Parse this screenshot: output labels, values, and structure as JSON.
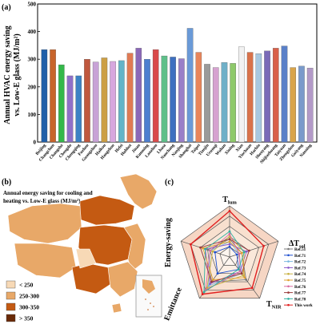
{
  "chart_data": [
    {
      "panel_label": "(a)",
      "type": "bar",
      "ylabel_line1": "Annual HVAC energy saving",
      "ylabel_line2": "vs. Low-E glass (MJ/m²)",
      "ylim": [
        0,
        500
      ],
      "yticks": [
        "0",
        "100",
        "200",
        "300",
        "400",
        "500"
      ],
      "categories": [
        "Beijing",
        "Changchun",
        "Changsha",
        "Chengdu",
        "Chongqing",
        "Fuzhou",
        "Guangzhou",
        "Haikou",
        "Hangzhou",
        "Hefei",
        "Huhhot",
        "Jinan",
        "Kunming",
        "Lanzhou",
        "Lhasa",
        "Nanchang",
        "Nanjing",
        "Shanghai",
        "Taipei",
        "Tianjin",
        "Urumqi",
        "Wuhan",
        "Xining",
        "Xian",
        "Yinchuan",
        "Harbin",
        "Shenyang",
        "Shijiazhuang",
        "Taiyuan",
        "Zhengzhou",
        "Guiyang",
        "Nanning"
      ],
      "values": [
        335,
        335,
        280,
        240,
        240,
        300,
        290,
        305,
        292,
        295,
        322,
        340,
        300,
        335,
        312,
        308,
        302,
        412,
        325,
        282,
        270,
        288,
        285,
        345,
        325,
        320,
        330,
        340,
        348,
        270,
        275,
        268
      ],
      "colors": [
        "#1f5fa8",
        "#c8642a",
        "#34b84a",
        "#8f70c8",
        "#3b82c4",
        "#c0583e",
        "#c8a2d6",
        "#cc9f45",
        "#d7a7de",
        "#63b4c8",
        "#e07a54",
        "#8b68b8",
        "#4d7fd0",
        "#d94a4a",
        "#5fbf8a",
        "#3e70c0",
        "#9a7fc8",
        "#6a9ad8",
        "#e8855a",
        "#9a9a9a",
        "#d6a2d0",
        "#6fb0c8",
        "#8ec96a",
        "#f2f2f2",
        "#d9724a",
        "#a8c8e0",
        "#7a6ab8",
        "#d9604a",
        "#5a80c8",
        "#d9a44a",
        "#7a9acb",
        "#b39ac8"
      ]
    },
    {
      "panel_label": "(b)",
      "type": "map",
      "title_line1": "Annual energy saving for cooling and",
      "title_line2": "heating vs. Low-E glass (MJ/m²)",
      "legend": [
        {
          "label": "< 250",
          "color": "#f7d9b6"
        },
        {
          "label": "250-300",
          "color": "#e8a868"
        },
        {
          "label": "300-350",
          "color": "#c45a12"
        },
        {
          "label": "> 350",
          "color": "#6a2a08"
        }
      ]
    },
    {
      "panel_label": "(c)",
      "type": "radar",
      "axes": [
        "T",
        "ΔT",
        "T",
        "Emittance",
        "Energy-saving"
      ],
      "axis_subscripts": [
        "lum",
        "sol",
        "NIR",
        "",
        ""
      ],
      "series": [
        {
          "name": "Ref.51",
          "color": "#7a7a7a",
          "values": [
            0.35,
            0.25,
            0.55,
            0.6,
            0.45
          ]
        },
        {
          "name": "Ref.71",
          "color": "#1f50d0",
          "values": [
            0.2,
            0.15,
            0.3,
            0.4,
            0.3
          ]
        },
        {
          "name": "Ref.72",
          "color": "#7ab8e0",
          "values": [
            0.3,
            0.2,
            0.4,
            0.7,
            0.4
          ]
        },
        {
          "name": "Ref.73",
          "color": "#8a56c8",
          "values": [
            0.25,
            0.35,
            0.35,
            0.65,
            0.5
          ]
        },
        {
          "name": "Ref.74",
          "color": "#c8b040",
          "values": [
            0.4,
            0.3,
            0.45,
            0.75,
            0.35
          ]
        },
        {
          "name": "Ref.75",
          "color": "#e0a030",
          "values": [
            0.3,
            0.25,
            0.5,
            0.55,
            0.55
          ]
        },
        {
          "name": "Ref.76",
          "color": "#d96aa0",
          "values": [
            0.45,
            0.2,
            0.35,
            0.8,
            0.4
          ]
        },
        {
          "name": "Ref.77",
          "color": "#9a3a3a",
          "values": [
            0.35,
            0.4,
            0.4,
            0.6,
            0.6
          ]
        },
        {
          "name": "Ref.78",
          "color": "#30b0a0",
          "values": [
            0.5,
            0.3,
            0.3,
            0.85,
            0.5
          ]
        },
        {
          "name": "This work",
          "color": "#e02020",
          "values": [
            0.9,
            0.7,
            0.75,
            0.9,
            0.8
          ]
        }
      ]
    }
  ]
}
